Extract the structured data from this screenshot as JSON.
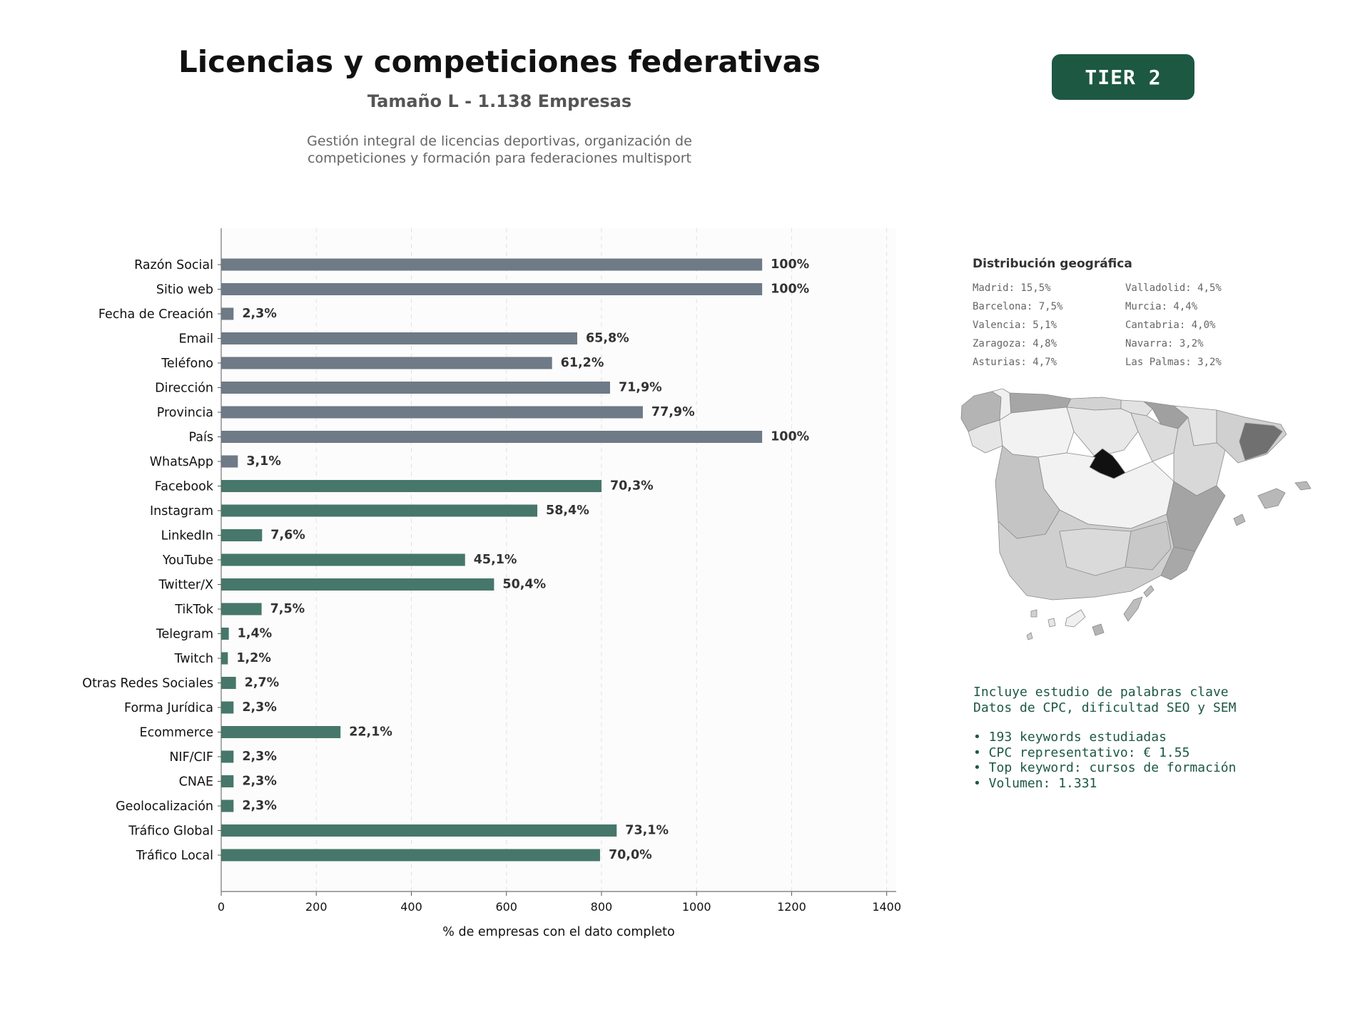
{
  "header": {
    "title": "Licencias y competiciones federativas",
    "subtitle": "Tamaño L - 1.138 Empresas",
    "description_line1": "Gestión integral de licencias deportivas, organización de",
    "description_line2": "competiciones y formación para federaciones multisport",
    "tier": "TIER 2"
  },
  "colors": {
    "contact_bar": "#6e7a86",
    "social_bar": "#46776a",
    "badge": "#1d5842",
    "accent_text": "#1d5842"
  },
  "chart_data": {
    "type": "bar",
    "orientation": "horizontal",
    "categories": [
      "Razón Social",
      "Sitio web",
      "Fecha de Creación",
      "Email",
      "Teléfono",
      "Dirección",
      "Provincia",
      "País",
      "WhatsApp",
      "Facebook",
      "Instagram",
      "LinkedIn",
      "YouTube",
      "Twitter/X",
      "TikTok",
      "Telegram",
      "Twitch",
      "Otras Redes Sociales",
      "Forma Jurídica",
      "Ecommerce",
      "NIF/CIF",
      "CNAE",
      "Geolocalización",
      "Tráfico Global",
      "Tráfico Local"
    ],
    "values": [
      1138,
      1138,
      26,
      749,
      696,
      818,
      887,
      1138,
      35,
      800,
      665,
      86,
      513,
      574,
      85,
      16,
      14,
      31,
      26,
      251,
      26,
      26,
      26,
      832,
      797
    ],
    "labels": [
      "100%",
      "100%",
      "2,3%",
      "65,8%",
      "61,2%",
      "71,9%",
      "77,9%",
      "100%",
      "3,1%",
      "70,3%",
      "58,4%",
      "7,6%",
      "45,1%",
      "50,4%",
      "7,5%",
      "1,4%",
      "1,2%",
      "2,7%",
      "2,3%",
      "22,1%",
      "2,3%",
      "2,3%",
      "2,3%",
      "73,1%",
      "70,0%"
    ],
    "groups": [
      "contact",
      "contact",
      "contact",
      "contact",
      "contact",
      "contact",
      "contact",
      "contact",
      "contact",
      "social",
      "social",
      "social",
      "social",
      "social",
      "social",
      "social",
      "social",
      "social",
      "social",
      "social",
      "social",
      "social",
      "social",
      "social",
      "social"
    ],
    "xlabel": "% de empresas con el dato completo",
    "xlim": [
      0,
      1420
    ],
    "xticks": [
      0,
      200,
      400,
      600,
      800,
      1000,
      1200,
      1400
    ],
    "grid": "vertical dashed"
  },
  "geo": {
    "title": "Distribución geográfica",
    "items": [
      "Madrid: 15,5%",
      "Valladolid: 4,5%",
      "Barcelona: 7,5%",
      "Murcia: 4,4%",
      "Valencia: 5,1%",
      "Cantabria: 4,0%",
      "Zaragoza: 4,8%",
      "Navarra: 3,2%",
      "Asturias: 4,7%",
      "Las Palmas: 3,2%"
    ]
  },
  "seo": {
    "line1": "Incluye estudio de palabras clave",
    "line2": "Datos de CPC, dificultad SEO y SEM",
    "bullets": [
      "• 193 keywords estudiadas",
      "• CPC representativo: € 1.55",
      "• Top keyword: cursos de formación",
      "• Volumen: 1.331"
    ]
  }
}
